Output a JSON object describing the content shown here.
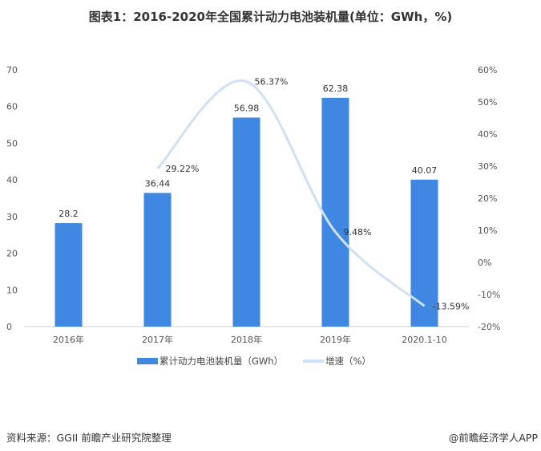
{
  "title": "图表1：2016-2020年全国累计动力电池装机量(单位：GWh，%)",
  "chart_data": {
    "type": "bar+line",
    "title": "图表1：2016-2020年全国累计动力电池装机量(单位：GWh，%)",
    "categories": [
      "2016年",
      "2017年",
      "2018年",
      "2019年",
      "2020.1-10"
    ],
    "series": [
      {
        "name": "累计动力电池装机量（GWh）",
        "type": "bar",
        "axis": "left",
        "values": [
          28.2,
          36.44,
          56.98,
          62.38,
          40.07
        ],
        "labels": [
          "28.2",
          "36.44",
          "56.98",
          "62.38",
          "40.07"
        ],
        "color": "#3f87e0"
      },
      {
        "name": "增速（%）",
        "type": "line",
        "axis": "right",
        "smooth": true,
        "values": [
          null,
          29.22,
          56.37,
          9.48,
          -13.59
        ],
        "labels": [
          "",
          "29.22%",
          "56.37%",
          "9.48%",
          "-13.59%"
        ],
        "color": "#cde2f7"
      }
    ],
    "left_axis": {
      "ylim": [
        0,
        70
      ],
      "ticks": [
        "0",
        "10",
        "20",
        "30",
        "40",
        "50",
        "60",
        "70"
      ]
    },
    "right_axis": {
      "ylim": [
        -20,
        60
      ],
      "ticks": [
        "-20%",
        "-10%",
        "0%",
        "10%",
        "20%",
        "30%",
        "40%",
        "50%",
        "60%"
      ]
    },
    "grid": false,
    "legend": "bottom"
  },
  "footer": {
    "source": "资料来源：GGII 前瞻产业研究院整理",
    "credit": "@前瞻经济学人APP"
  }
}
